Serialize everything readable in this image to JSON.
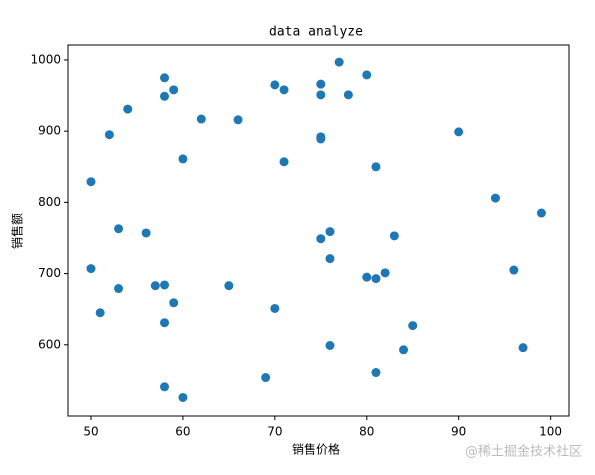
{
  "chart_data": {
    "type": "scatter",
    "title": "data analyze",
    "x_label": "销售价格",
    "y_label": "销售额",
    "series": [
      {
        "color": "#1f77b4",
        "x": [
          58,
          58,
          59,
          54,
          52,
          60,
          62,
          66,
          50,
          53,
          56,
          50,
          53,
          51,
          57,
          58,
          59,
          58,
          65,
          70,
          71,
          71,
          70,
          58,
          60,
          69,
          77,
          75,
          75,
          80,
          75,
          75,
          81,
          75,
          76,
          76,
          80,
          81,
          82,
          83,
          85,
          84,
          76,
          81,
          90,
          94,
          99,
          96,
          97,
          78
        ],
        "values": [
          975,
          949,
          958,
          931,
          895,
          861,
          917,
          916,
          829,
          763,
          757,
          707,
          679,
          645,
          683,
          684,
          659,
          631,
          683,
          965,
          958,
          857,
          651,
          541,
          526,
          554,
          997,
          966,
          951,
          979,
          892,
          889,
          850,
          749,
          759,
          721,
          695,
          693,
          701,
          753,
          627,
          593,
          599,
          561,
          899,
          806,
          785,
          705,
          596,
          951
        ]
      }
    ],
    "xlim": [
      47.5,
      102
    ],
    "ylim": [
      500,
      1021
    ],
    "xticks": [
      50,
      60,
      70,
      80,
      90,
      100
    ],
    "yticks": [
      600,
      700,
      800,
      900,
      1000
    ],
    "grid": false
  },
  "watermark": "@稀土掘金技术社区"
}
